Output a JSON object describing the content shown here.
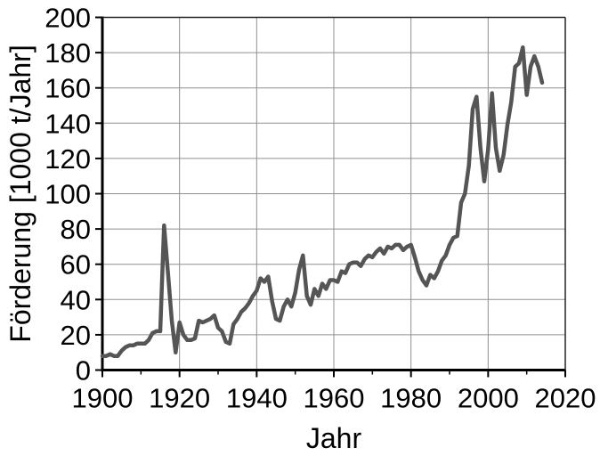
{
  "chart_data": {
    "type": "line",
    "xlabel": "Jahr",
    "ylabel": "Förderung [1000 t/Jahr]",
    "xlim": [
      1900,
      2020
    ],
    "ylim": [
      0,
      200
    ],
    "x_ticks": [
      1900,
      1920,
      1940,
      1960,
      1980,
      2000,
      2020
    ],
    "x_minor_ticks": [
      1910,
      1930,
      1950,
      1970,
      1990,
      2010
    ],
    "y_ticks": [
      0,
      20,
      40,
      60,
      80,
      100,
      120,
      140,
      160,
      180,
      200
    ],
    "grid": true,
    "legend": "none",
    "line_color": "#555555",
    "grid_color": "#909090",
    "axis_color": "#000000",
    "series": [
      {
        "name": "Förderung",
        "x": [
          1900,
          1901,
          1902,
          1903,
          1904,
          1905,
          1906,
          1907,
          1908,
          1909,
          1910,
          1911,
          1912,
          1913,
          1914,
          1915,
          1916,
          1917,
          1918,
          1919,
          1920,
          1921,
          1922,
          1923,
          1924,
          1925,
          1926,
          1927,
          1928,
          1929,
          1930,
          1931,
          1932,
          1933,
          1934,
          1935,
          1936,
          1937,
          1938,
          1939,
          1940,
          1941,
          1942,
          1943,
          1944,
          1945,
          1946,
          1947,
          1948,
          1949,
          1950,
          1951,
          1952,
          1953,
          1954,
          1955,
          1956,
          1957,
          1958,
          1959,
          1960,
          1961,
          1962,
          1963,
          1964,
          1965,
          1966,
          1967,
          1968,
          1969,
          1970,
          1971,
          1972,
          1973,
          1974,
          1975,
          1976,
          1977,
          1978,
          1979,
          1980,
          1981,
          1982,
          1983,
          1984,
          1985,
          1986,
          1987,
          1988,
          1989,
          1990,
          1991,
          1992,
          1993,
          1994,
          1995,
          1996,
          1997,
          1998,
          1999,
          2000,
          2001,
          2002,
          2003,
          2004,
          2005,
          2006,
          2007,
          2008,
          2009,
          2010,
          2011,
          2012,
          2013,
          2014
        ],
        "values": [
          8,
          8,
          9,
          8,
          8,
          11,
          13,
          14,
          14,
          15,
          15,
          15,
          17,
          21,
          22,
          22,
          82,
          55,
          28,
          10,
          27,
          20,
          17,
          17,
          18,
          28,
          27,
          28,
          29,
          31,
          24,
          22,
          16,
          15,
          26,
          29,
          33,
          35,
          38,
          42,
          45,
          52,
          50,
          53,
          39,
          29,
          28,
          36,
          40,
          36,
          44,
          57,
          65,
          42,
          37,
          46,
          42,
          49,
          46,
          51,
          51,
          50,
          56,
          55,
          60,
          61,
          61,
          59,
          63,
          65,
          64,
          67,
          69,
          66,
          70,
          69,
          71,
          71,
          68,
          70,
          71,
          64,
          56,
          51,
          48,
          54,
          52,
          56,
          62,
          65,
          71,
          75,
          76,
          95,
          100,
          116,
          148,
          155,
          126,
          107,
          125,
          157,
          126,
          113,
          122,
          139,
          152,
          172,
          174,
          183,
          156,
          172,
          178,
          172,
          163
        ]
      }
    ]
  }
}
